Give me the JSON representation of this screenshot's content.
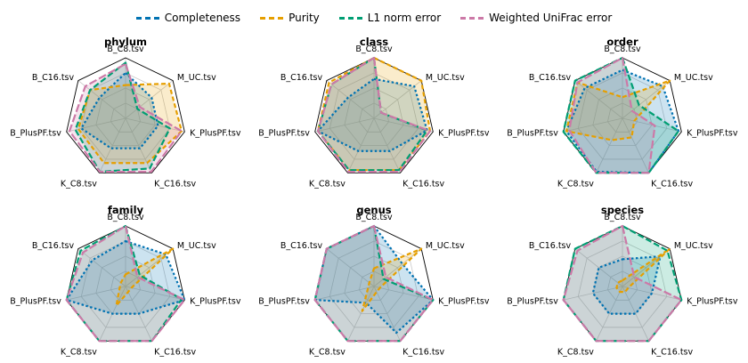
{
  "colors": {
    "Completeness": "#0072b2",
    "Purity": "#e69f00",
    "L1 norm error": "#009e73",
    "Weighted UniFrac error": "#cc79a7"
  },
  "chart_data": {
    "type": "radar",
    "axes": [
      "B_C8.tsv",
      "M_UC.tsv",
      "K_PlusPF.tsv",
      "K_C16.tsv",
      "K_C8.tsv",
      "B_PlusPF.tsv",
      "B_C16.tsv"
    ],
    "rlim": [
      0,
      1
    ],
    "legend_placement": "top-center",
    "series_names": [
      "Completeness",
      "Purity",
      "L1 norm error",
      "Weighted UniFrac error"
    ],
    "panels": [
      {
        "title": "phylum",
        "series": [
          {
            "name": "Completeness",
            "values": [
              0.75,
              0.55,
              0.55,
              0.55,
              0.55,
              0.75,
              0.55
            ]
          },
          {
            "name": "Purity",
            "values": [
              0.55,
              0.92,
              0.95,
              0.82,
              0.82,
              0.8,
              0.75
            ]
          },
          {
            "name": "L1 norm error",
            "values": [
              0.92,
              0.25,
              0.75,
              0.92,
              0.98,
              0.85,
              0.75
            ]
          },
          {
            "name": "Weighted UniFrac error",
            "values": [
              0.9,
              0.3,
              0.95,
              0.98,
              0.98,
              0.95,
              0.85
            ]
          }
        ]
      },
      {
        "title": "class",
        "series": [
          {
            "name": "Completeness",
            "values": [
              0.65,
              0.85,
              0.9,
              0.6,
              0.6,
              0.95,
              0.55
            ]
          },
          {
            "name": "Purity",
            "values": [
              1.0,
              1.0,
              0.95,
              0.95,
              0.95,
              0.95,
              0.95
            ]
          },
          {
            "name": "L1 norm error",
            "values": [
              1.0,
              0.15,
              0.9,
              0.95,
              0.95,
              0.95,
              0.9
            ]
          },
          {
            "name": "Weighted UniFrac error",
            "values": [
              1.0,
              0.15,
              0.95,
              0.98,
              0.98,
              0.95,
              0.9
            ]
          }
        ]
      },
      {
        "title": "order",
        "series": [
          {
            "name": "Completeness",
            "values": [
              0.8,
              0.85,
              0.95,
              1.0,
              0.98,
              0.95,
              0.8
            ]
          },
          {
            "name": "Purity",
            "values": [
              0.35,
              1.0,
              0.2,
              0.35,
              0.4,
              0.95,
              0.95
            ]
          },
          {
            "name": "L1 norm error",
            "values": [
              1.0,
              0.35,
              0.95,
              1.0,
              1.0,
              1.0,
              1.0
            ]
          },
          {
            "name": "Weighted UniFrac error",
            "values": [
              1.0,
              0.2,
              0.55,
              1.0,
              1.0,
              0.9,
              0.95
            ]
          }
        ]
      },
      {
        "title": "family",
        "series": [
          {
            "name": "Completeness",
            "values": [
              0.75,
              0.85,
              1.0,
              0.5,
              0.5,
              1.0,
              0.7
            ]
          },
          {
            "name": "Purity",
            "values": [
              0.2,
              1.0,
              0.1,
              0.1,
              0.35,
              0.1,
              0.1
            ]
          },
          {
            "name": "L1 norm error",
            "values": [
              1.0,
              0.3,
              0.95,
              1.0,
              1.0,
              1.0,
              0.95
            ]
          },
          {
            "name": "Weighted UniFrac error",
            "values": [
              1.0,
              0.25,
              1.0,
              1.0,
              1.0,
              1.0,
              0.9
            ]
          }
        ]
      },
      {
        "title": "genus",
        "series": [
          {
            "name": "Completeness",
            "values": [
              1.0,
              0.6,
              1.0,
              0.85,
              0.3,
              1.0,
              1.0
            ]
          },
          {
            "name": "Purity",
            "values": [
              0.3,
              1.0,
              0.1,
              0.1,
              0.45,
              0.1,
              0.1
            ]
          },
          {
            "name": "L1 norm error",
            "values": [
              1.0,
              0.2,
              1.0,
              1.0,
              1.0,
              1.0,
              1.0
            ]
          },
          {
            "name": "Weighted UniFrac error",
            "values": [
              1.0,
              0.25,
              1.0,
              1.0,
              1.0,
              1.0,
              1.0
            ]
          }
        ]
      },
      {
        "title": "species",
        "series": [
          {
            "name": "Completeness",
            "values": [
              0.45,
              0.8,
              0.5,
              0.5,
              0.5,
              0.5,
              0.5
            ]
          },
          {
            "name": "Purity",
            "values": [
              0.1,
              1.0,
              0.1,
              0.1,
              0.1,
              0.1,
              0.1
            ]
          },
          {
            "name": "L1 norm error",
            "values": [
              1.0,
              0.95,
              1.0,
              1.0,
              1.0,
              1.0,
              1.0
            ]
          },
          {
            "name": "Weighted UniFrac error",
            "values": [
              1.0,
              0.25,
              1.0,
              1.0,
              1.0,
              1.0,
              0.95
            ]
          }
        ]
      }
    ]
  }
}
